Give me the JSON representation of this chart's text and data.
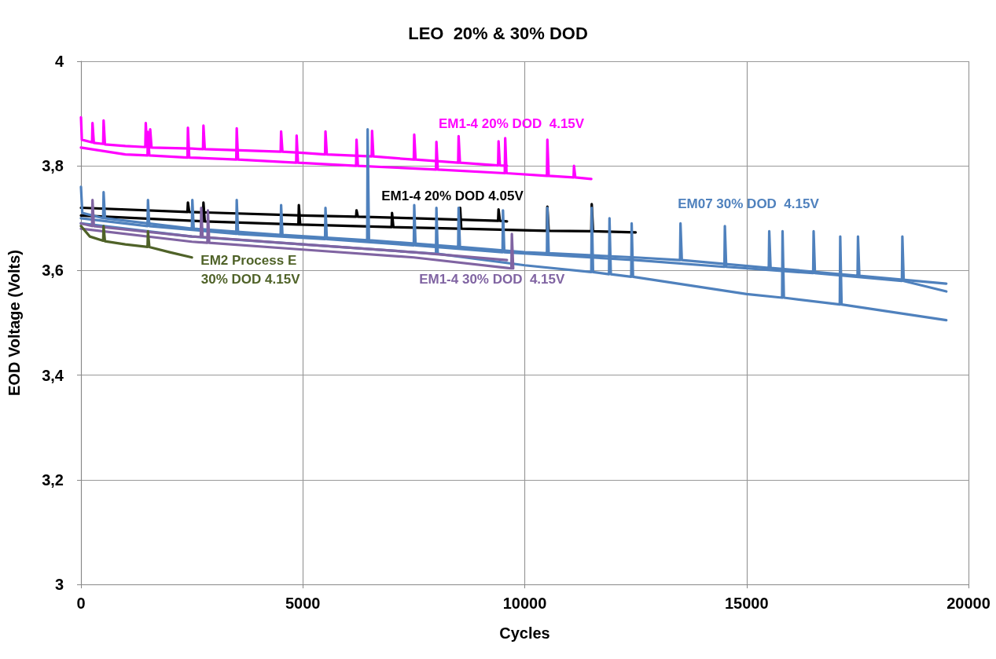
{
  "chart_data": {
    "type": "line",
    "title": "LEO  20% & 30% DOD",
    "xlabel": "Cycles",
    "ylabel": "EOD Voltage (Volts)",
    "xlim": [
      0,
      20000
    ],
    "xticks": [
      0,
      5000,
      10000,
      15000,
      20000
    ],
    "ylim": [
      3,
      4
    ],
    "yticks": [
      3,
      {
        "value": 3.2,
        "label": "3,2"
      },
      {
        "value": 3.4,
        "label": "3,4"
      },
      {
        "value": 3.6,
        "label": "3,6"
      },
      {
        "value": 3.8,
        "label": "3,8"
      },
      4
    ],
    "grid": true,
    "legend": false,
    "marker": "none",
    "line_style": "solid",
    "series": [
      {
        "name": "EM1-4 20% DOD  4.15V",
        "color": "#ff00ff",
        "x": [
          0,
          20,
          250,
          260,
          290,
          500,
          510,
          540,
          1000,
          1450,
          1460,
          1490,
          1550,
          1560,
          1590,
          2500,
          2750,
          2760,
          2790,
          4500,
          4510,
          4540,
          5000,
          5500,
          5510,
          5540,
          6550,
          6560,
          6590,
          7500,
          7510,
          7540,
          8500,
          8510,
          8540,
          9400,
          9410,
          9440,
          9600
        ],
        "values": [
          3.893,
          3.85,
          3.845,
          3.882,
          3.844,
          3.842,
          3.887,
          3.841,
          3.838,
          3.836,
          3.882,
          3.836,
          3.835,
          3.87,
          3.835,
          3.833,
          3.832,
          3.877,
          3.832,
          3.827,
          3.866,
          3.827,
          3.825,
          3.822,
          3.866,
          3.822,
          3.818,
          3.867,
          3.818,
          3.812,
          3.86,
          3.812,
          3.806,
          3.857,
          3.806,
          3.801,
          3.847,
          3.801,
          3.8
        ]
      },
      {
        "color": "#ff00ff",
        "x": [
          0,
          1000,
          1500,
          1510,
          1540,
          2400,
          2410,
          2440,
          3500,
          3510,
          3540,
          4850,
          4860,
          4890,
          6200,
          6210,
          6240,
          8000,
          8010,
          8040,
          9550,
          9560,
          9590,
          10500,
          10510,
          10540,
          11100,
          11110,
          11140,
          11500
        ],
        "values": [
          3.835,
          3.822,
          3.82,
          3.865,
          3.82,
          3.816,
          3.873,
          3.816,
          3.812,
          3.872,
          3.812,
          3.806,
          3.858,
          3.806,
          3.8,
          3.85,
          3.8,
          3.793,
          3.846,
          3.793,
          3.786,
          3.853,
          3.786,
          3.781,
          3.85,
          3.781,
          3.778,
          3.8,
          3.778,
          3.775
        ]
      },
      {
        "name": "EM1-4 20% DOD 4.05V",
        "color": "#000000",
        "x": [
          0,
          2400,
          2410,
          2440,
          5000,
          6200,
          6210,
          6240,
          7500,
          9400,
          9410,
          9440,
          9600
        ],
        "values": [
          3.72,
          3.712,
          3.73,
          3.712,
          3.705,
          3.703,
          3.715,
          3.703,
          3.7,
          3.695,
          3.717,
          3.695,
          3.694
        ]
      },
      {
        "color": "#000000",
        "x": [
          0,
          2750,
          2760,
          2790,
          4900,
          4910,
          4940,
          7000,
          7010,
          7040,
          8530,
          8545,
          8570,
          10500,
          10510,
          10540,
          11500,
          11510,
          11540,
          12500
        ],
        "values": [
          3.705,
          3.694,
          3.73,
          3.694,
          3.688,
          3.725,
          3.688,
          3.683,
          3.71,
          3.683,
          3.68,
          3.72,
          3.68,
          3.676,
          3.722,
          3.676,
          3.675,
          3.727,
          3.675,
          3.673
        ]
      },
      {
        "name": "EM07 30% DOD  4.15V",
        "color": "#4f81bd",
        "x": [
          0,
          30,
          500,
          510,
          540,
          2500,
          2510,
          2540,
          4500,
          4510,
          4540,
          6450,
          6460,
          6490,
          8500,
          8510,
          8540,
          10000,
          10500,
          10510,
          10540,
          12500,
          13500,
          13510,
          13540,
          15500,
          15510,
          15540,
          17500,
          17510,
          17540,
          19500
        ],
        "values": [
          3.76,
          3.71,
          3.7,
          3.75,
          3.7,
          3.68,
          3.735,
          3.68,
          3.668,
          3.725,
          3.668,
          3.658,
          3.87,
          3.658,
          3.645,
          3.72,
          3.645,
          3.635,
          3.633,
          3.72,
          3.633,
          3.625,
          3.62,
          3.69,
          3.62,
          3.605,
          3.675,
          3.605,
          3.59,
          3.665,
          3.59,
          3.575
        ]
      },
      {
        "color": "#4f81bd",
        "x": [
          0,
          1500,
          1510,
          1540,
          3500,
          3510,
          3540,
          5500,
          5510,
          5540,
          7500,
          7510,
          7540,
          9500,
          9510,
          9540,
          12500,
          14500,
          14510,
          14540,
          16500,
          16510,
          16540,
          18500,
          18510,
          18540,
          19500
        ],
        "values": [
          3.7,
          3.685,
          3.735,
          3.685,
          3.67,
          3.735,
          3.67,
          3.66,
          3.72,
          3.66,
          3.648,
          3.725,
          3.648,
          3.635,
          3.715,
          3.635,
          3.62,
          3.607,
          3.685,
          3.607,
          3.595,
          3.675,
          3.595,
          3.58,
          3.665,
          3.58,
          3.56
        ]
      },
      {
        "color": "#4f81bd",
        "x": [
          0,
          2500,
          5000,
          7500,
          8000,
          8010,
          8040,
          10000,
          11500,
          11510,
          11540,
          11900,
          11910,
          11940,
          12400,
          12410,
          12440,
          15000,
          15800,
          15810,
          15840,
          17100,
          17110,
          17140,
          19500
        ],
        "values": [
          3.69,
          3.665,
          3.65,
          3.635,
          3.632,
          3.72,
          3.632,
          3.61,
          3.597,
          3.72,
          3.597,
          3.593,
          3.7,
          3.593,
          3.588,
          3.69,
          3.588,
          3.555,
          3.548,
          3.675,
          3.548,
          3.535,
          3.665,
          3.535,
          3.505
        ]
      },
      {
        "name": "EM1-4 30% DOD  4.15V",
        "color": "#8064a2",
        "x": [
          0,
          250,
          260,
          290,
          2500,
          2700,
          2710,
          2740,
          5000,
          7500,
          9600
        ],
        "values": [
          3.69,
          3.685,
          3.735,
          3.685,
          3.665,
          3.664,
          3.72,
          3.664,
          3.65,
          3.635,
          3.62
        ]
      },
      {
        "color": "#8064a2",
        "x": [
          0,
          2500,
          2850,
          2860,
          2890,
          5000,
          7500,
          9600,
          9700,
          9710,
          9740
        ],
        "values": [
          3.68,
          3.655,
          3.653,
          3.715,
          3.653,
          3.64,
          3.625,
          3.605,
          3.604,
          3.67,
          3.604
        ]
      },
      {
        "name": "EM2 Process E 30% DOD 4.15V",
        "color": "#4f6228",
        "x": [
          0,
          200,
          500,
          510,
          540,
          1000,
          1500,
          1510,
          1540,
          2000,
          2500
        ],
        "values": [
          3.685,
          3.665,
          3.657,
          3.685,
          3.656,
          3.65,
          3.645,
          3.675,
          3.645,
          3.635,
          3.625
        ]
      }
    ]
  }
}
